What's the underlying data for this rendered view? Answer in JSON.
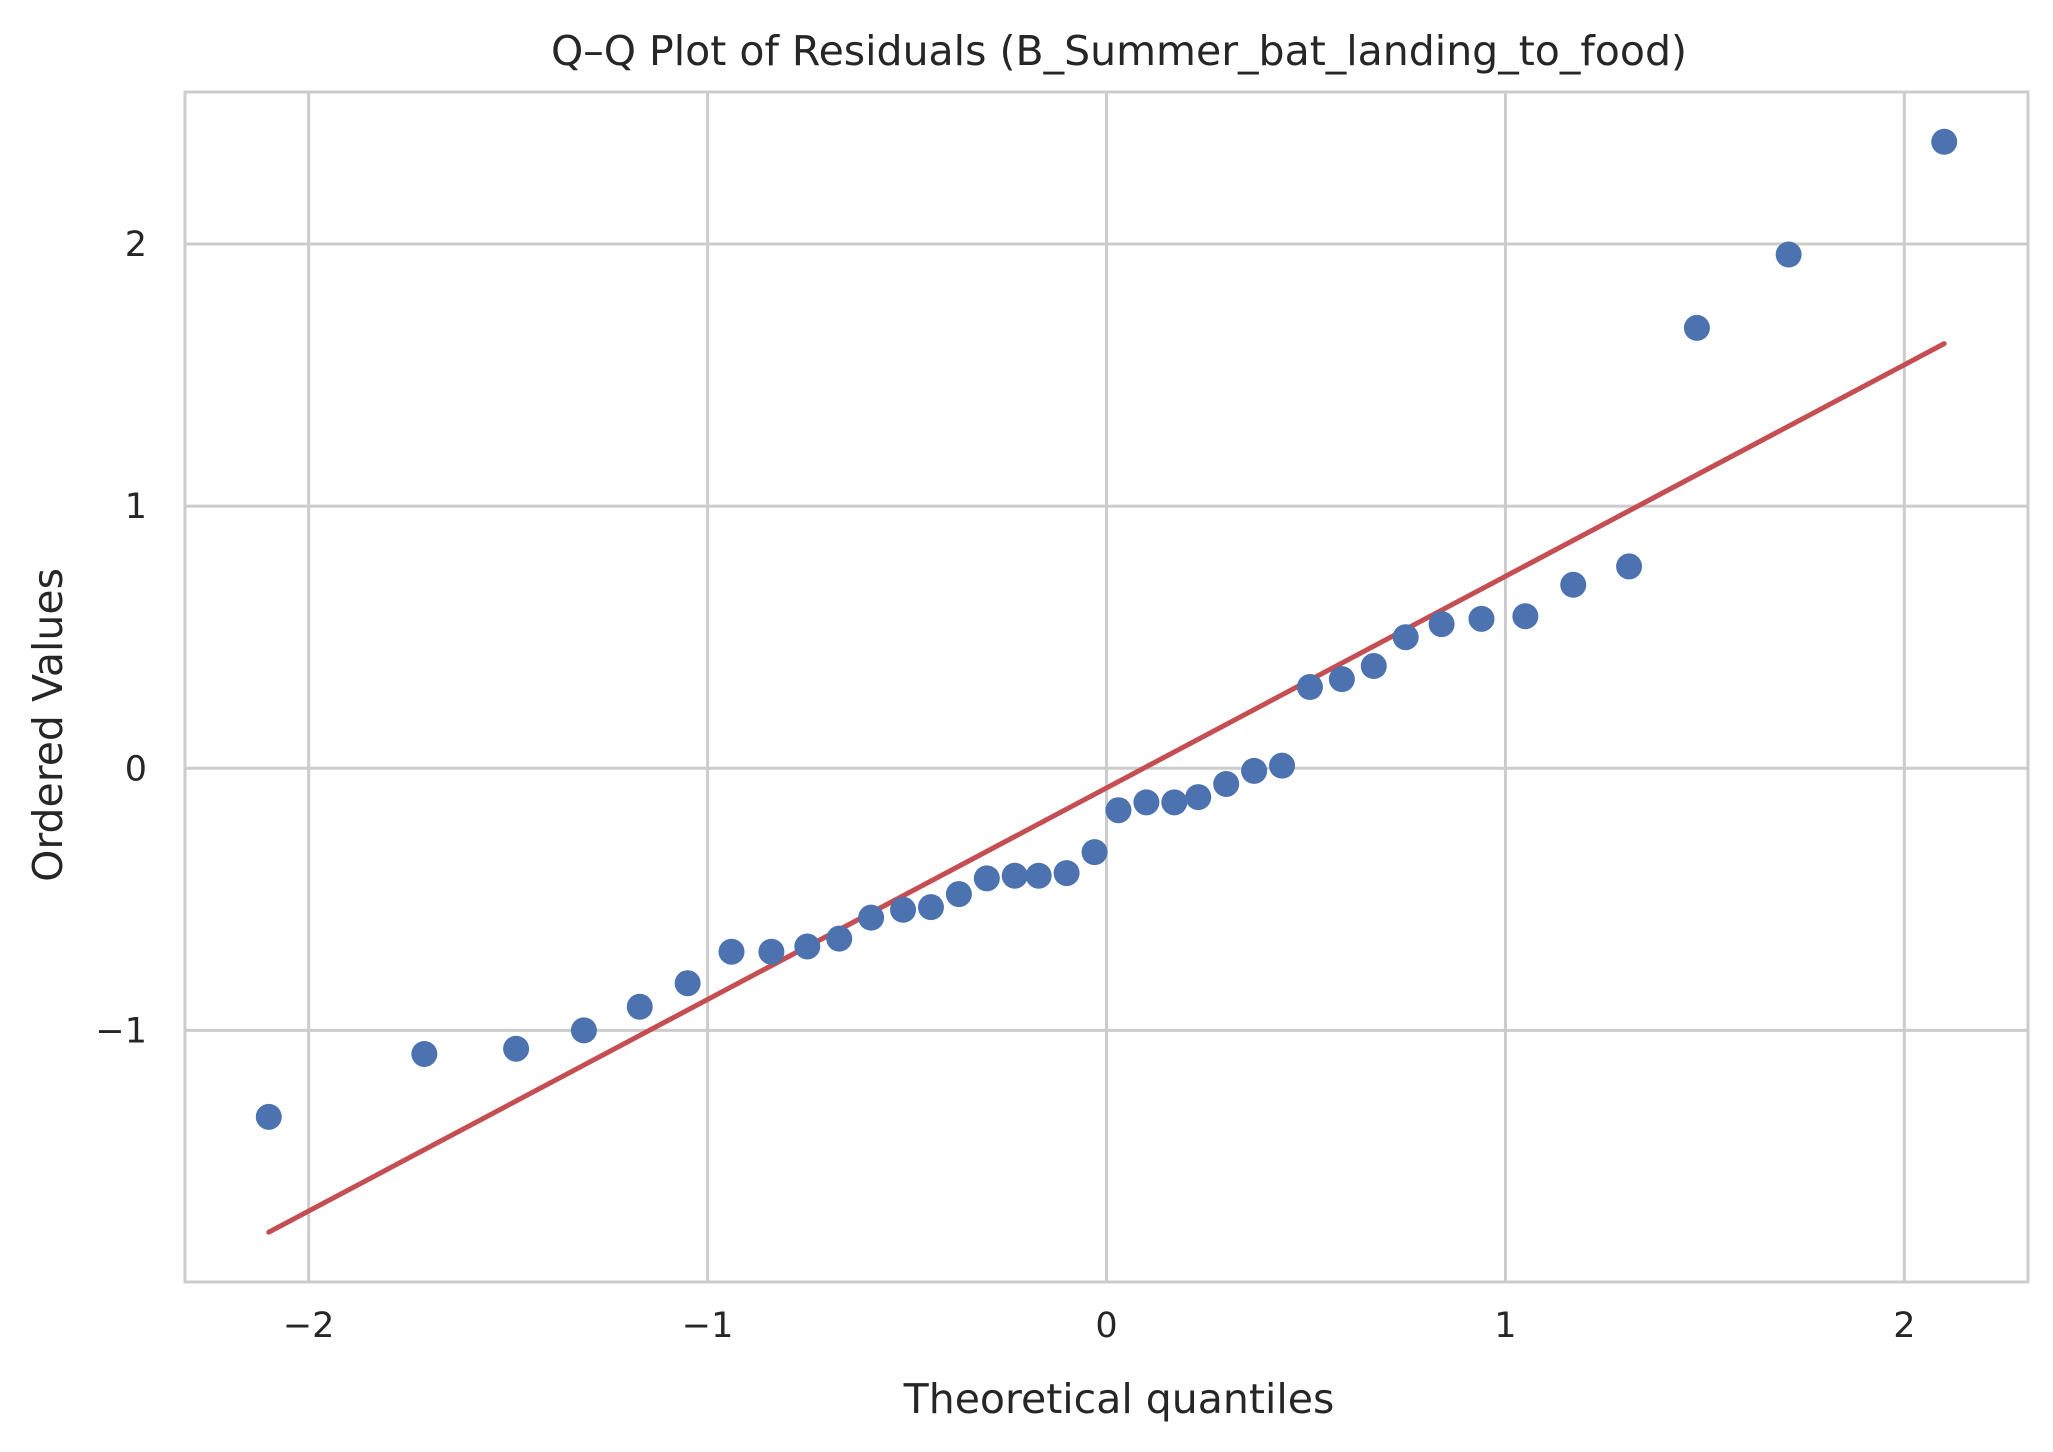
{
  "chart_data": {
    "type": "scatter",
    "title": "Q–Q Plot of Residuals (B_Summer_bat_landing_to_food)",
    "xlabel": "Theoretical quantiles",
    "ylabel": "Ordered Values",
    "xlim": [
      -2.31,
      2.31
    ],
    "ylim": [
      -1.96,
      2.58
    ],
    "grid": true,
    "x_ticks": [
      {
        "value": -2,
        "label": "−2"
      },
      {
        "value": -1,
        "label": "−1"
      },
      {
        "value": 0,
        "label": "0"
      },
      {
        "value": 1,
        "label": "1"
      },
      {
        "value": 2,
        "label": "2"
      }
    ],
    "y_ticks": [
      {
        "value": -1,
        "label": "−1"
      },
      {
        "value": 0,
        "label": "0"
      },
      {
        "value": 1,
        "label": "1"
      },
      {
        "value": 2,
        "label": "2"
      }
    ],
    "series": [
      {
        "kind": "points",
        "color": "#4C72B0",
        "points": [
          [
            -2.1,
            -1.33
          ],
          [
            -1.71,
            -1.09
          ],
          [
            -1.48,
            -1.07
          ],
          [
            -1.31,
            -1.0
          ],
          [
            -1.17,
            -0.91
          ],
          [
            -1.05,
            -0.82
          ],
          [
            -0.94,
            -0.7
          ],
          [
            -0.84,
            -0.7
          ],
          [
            -0.75,
            -0.68
          ],
          [
            -0.67,
            -0.65
          ],
          [
            -0.59,
            -0.57
          ],
          [
            -0.51,
            -0.54
          ],
          [
            -0.44,
            -0.53
          ],
          [
            -0.37,
            -0.48
          ],
          [
            -0.3,
            -0.42
          ],
          [
            -0.23,
            -0.41
          ],
          [
            -0.17,
            -0.41
          ],
          [
            -0.1,
            -0.4
          ],
          [
            -0.03,
            -0.32
          ],
          [
            0.03,
            -0.16
          ],
          [
            0.1,
            -0.13
          ],
          [
            0.17,
            -0.13
          ],
          [
            0.23,
            -0.11
          ],
          [
            0.3,
            -0.06
          ],
          [
            0.37,
            -0.01
          ],
          [
            0.44,
            0.01
          ],
          [
            0.51,
            0.31
          ],
          [
            0.59,
            0.34
          ],
          [
            0.67,
            0.39
          ],
          [
            0.75,
            0.5
          ],
          [
            0.84,
            0.55
          ],
          [
            0.94,
            0.57
          ],
          [
            1.05,
            0.58
          ],
          [
            1.17,
            0.7
          ],
          [
            1.31,
            0.77
          ],
          [
            1.48,
            1.68
          ],
          [
            1.71,
            1.96
          ],
          [
            2.1,
            2.39
          ]
        ]
      },
      {
        "kind": "fit-line",
        "color": "#C44E52",
        "points": [
          [
            -2.1,
            -1.77
          ],
          [
            2.1,
            1.62
          ]
        ]
      }
    ]
  }
}
